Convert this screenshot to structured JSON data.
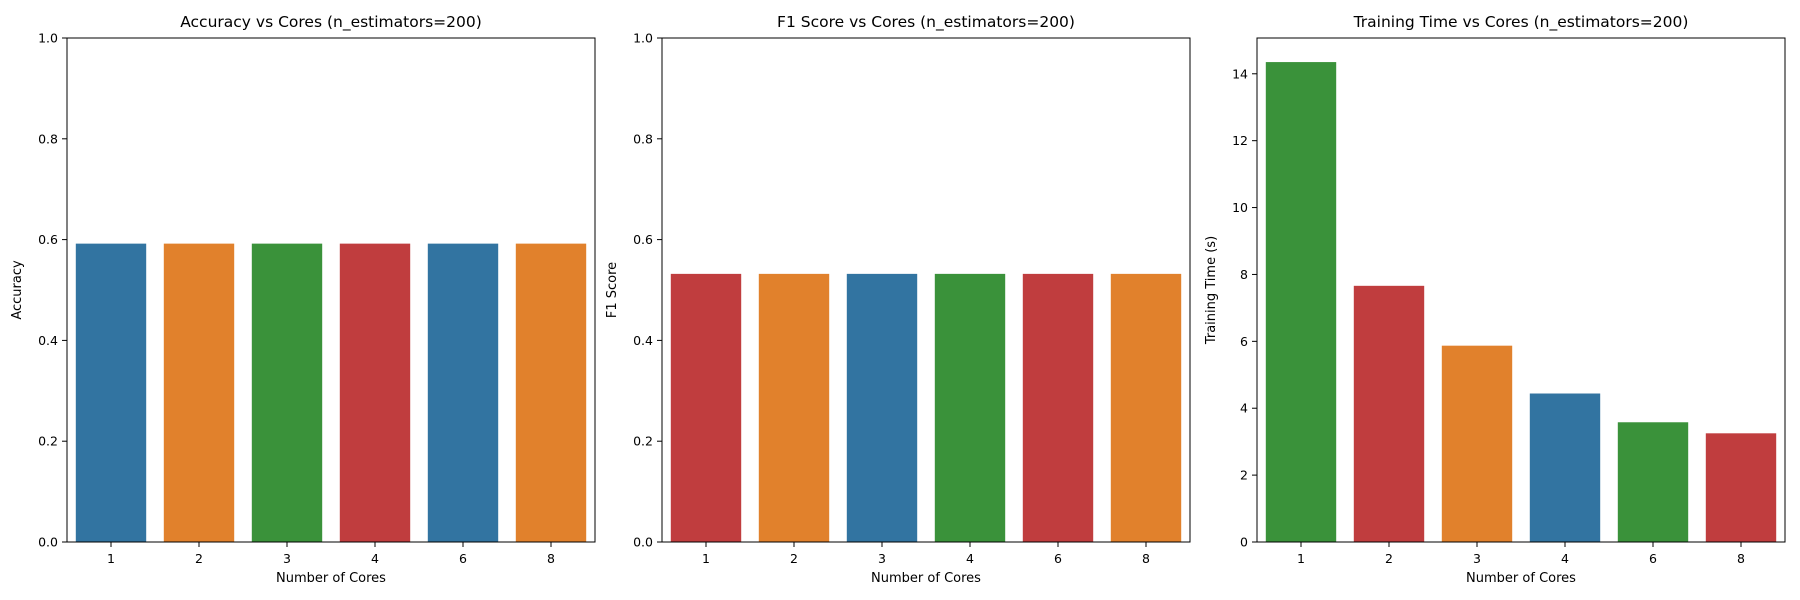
{
  "chart_data": [
    {
      "type": "bar",
      "title": "Accuracy vs Cores (n_estimators=200)",
      "xlabel": "Number of Cores",
      "ylabel": "Accuracy",
      "categories": [
        "1",
        "2",
        "3",
        "4",
        "6",
        "8"
      ],
      "values": [
        0.592,
        0.592,
        0.592,
        0.592,
        0.592,
        0.592
      ],
      "colors": [
        "#3274a1",
        "#e1812c",
        "#3a923a",
        "#c03d3e",
        "#3274a1",
        "#e1812c"
      ],
      "ylim": [
        0,
        1.0
      ],
      "yticks": [
        "0.0",
        "0.2",
        "0.4",
        "0.6",
        "0.8",
        "1.0"
      ],
      "ytick_values": [
        0,
        0.2,
        0.4,
        0.6,
        0.8,
        1.0
      ]
    },
    {
      "type": "bar",
      "title": "F1 Score vs Cores (n_estimators=200)",
      "xlabel": "Number of Cores",
      "ylabel": "F1 Score",
      "categories": [
        "1",
        "2",
        "3",
        "4",
        "6",
        "8"
      ],
      "values": [
        0.532,
        0.532,
        0.532,
        0.532,
        0.532,
        0.532
      ],
      "colors": [
        "#c03d3e",
        "#e1812c",
        "#3274a1",
        "#3a923a",
        "#c03d3e",
        "#e1812c"
      ],
      "ylim": [
        0,
        1.0
      ],
      "yticks": [
        "0.0",
        "0.2",
        "0.4",
        "0.6",
        "0.8",
        "1.0"
      ],
      "ytick_values": [
        0,
        0.2,
        0.4,
        0.6,
        0.8,
        1.0
      ]
    },
    {
      "type": "bar",
      "title": "Training Time vs Cores (n_estimators=200)",
      "xlabel": "Number of Cores",
      "ylabel": "Training Time (s)",
      "categories": [
        "1",
        "2",
        "3",
        "4",
        "6",
        "8"
      ],
      "values": [
        14.35,
        7.66,
        5.87,
        4.44,
        3.58,
        3.25
      ],
      "colors": [
        "#3a923a",
        "#c03d3e",
        "#e1812c",
        "#3274a1",
        "#3a923a",
        "#c03d3e"
      ],
      "ylim": [
        0,
        15.07
      ],
      "yticks": [
        "0",
        "2",
        "4",
        "6",
        "8",
        "10",
        "12",
        "14"
      ],
      "ytick_values": [
        0,
        2,
        4,
        6,
        8,
        10,
        12,
        14
      ]
    }
  ]
}
